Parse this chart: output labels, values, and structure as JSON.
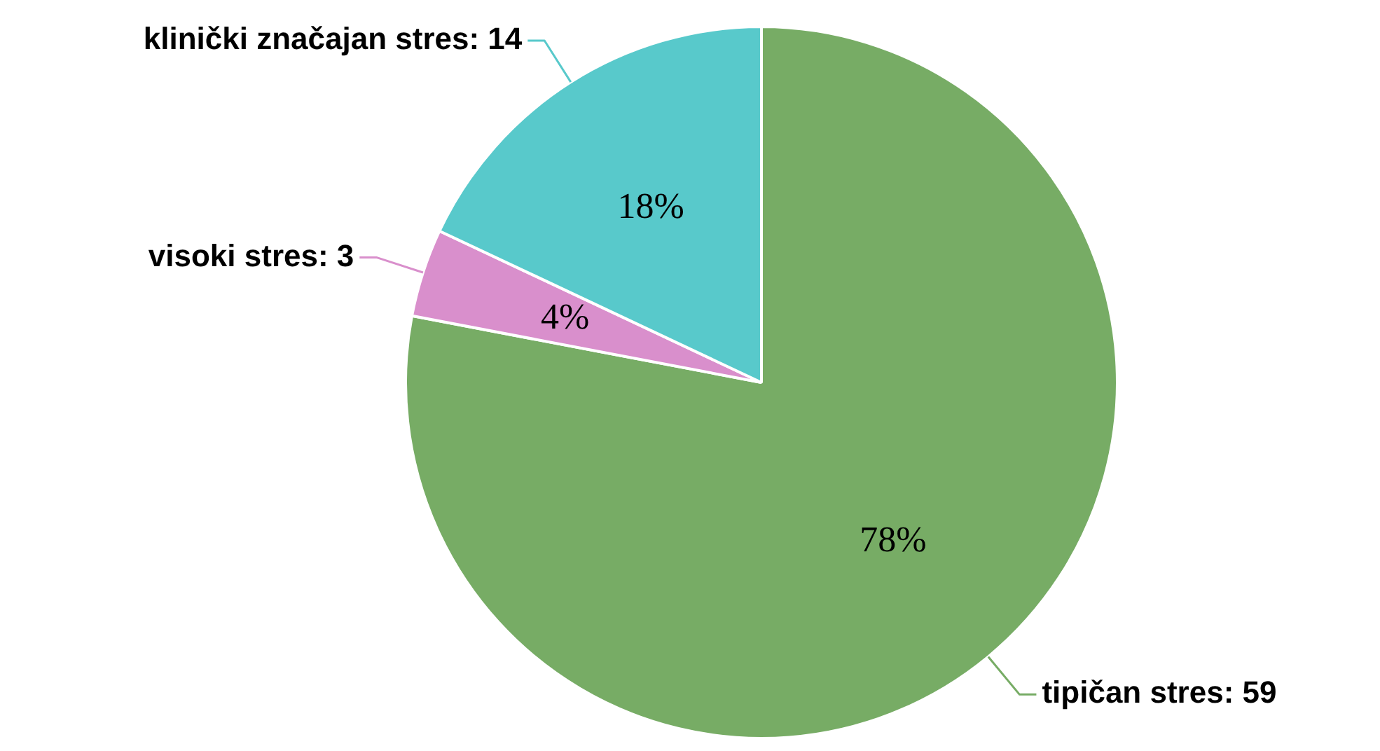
{
  "chart_data": {
    "type": "pie",
    "categories": [
      "tipičan stres: 59",
      "visoki stres: 3",
      "klinički značajan stres: 14"
    ],
    "values": [
      78,
      4,
      18
    ],
    "colors": [
      "#77ac65",
      "#d98fcc",
      "#58c9cb"
    ],
    "value_labels": [
      "78%",
      "4%",
      "18%"
    ],
    "legend": false
  }
}
